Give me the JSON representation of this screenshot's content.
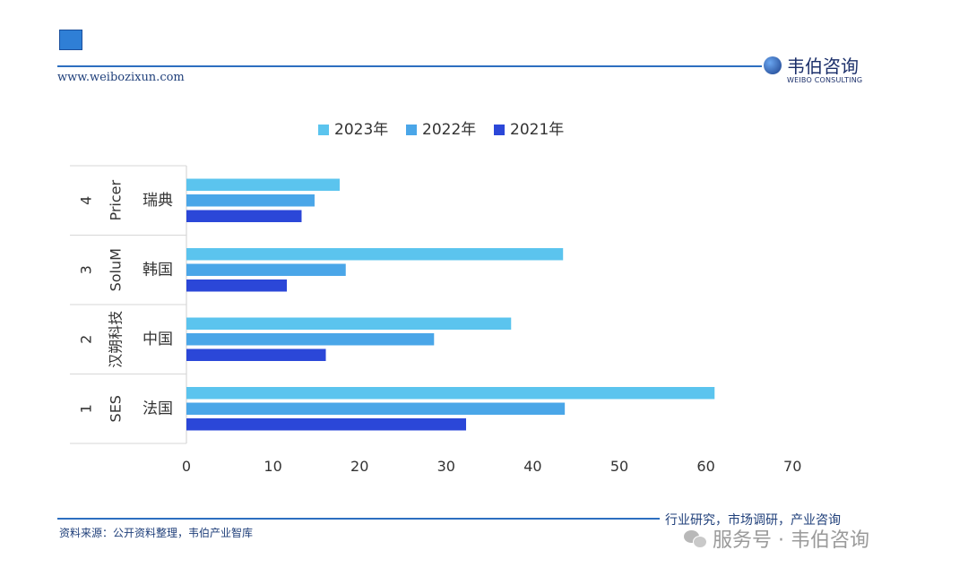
{
  "header": {
    "site_url": "www.weibozixun.com",
    "brand_name": "韦伯咨询",
    "brand_en": "WEIBO CONSULTING"
  },
  "footer": {
    "source": "资料来源：公开资料整理，韦伯产业智库",
    "tagline": "行业研究，市场调研，产业咨询",
    "watermark": "服务号 · 韦伯咨询"
  },
  "colors": {
    "accent": "#2d6fc0",
    "series_2023": "#5bc4ee",
    "series_2022": "#4aa6e8",
    "series_2021": "#2b47d8"
  },
  "chart_data": {
    "type": "bar",
    "orientation": "horizontal",
    "categories": [
      {
        "rank": "1",
        "company": "SES",
        "region": "法国"
      },
      {
        "rank": "2",
        "company": "汉朔科技",
        "region": "中国"
      },
      {
        "rank": "3",
        "company": "SoluM",
        "region": "韩国"
      },
      {
        "rank": "4",
        "company": "Pricer",
        "region": "瑞典"
      }
    ],
    "series": [
      {
        "name": "2023年",
        "values": [
          61,
          37.5,
          43.5,
          17.7
        ]
      },
      {
        "name": "2022年",
        "values": [
          43.7,
          28.6,
          18.4,
          14.8
        ]
      },
      {
        "name": "2021年",
        "values": [
          32.3,
          16.1,
          11.6,
          13.3
        ]
      }
    ],
    "xlim": [
      0,
      70
    ],
    "xticks": [
      "0",
      "10",
      "20",
      "30",
      "40",
      "50",
      "60",
      "70"
    ],
    "legend_position": "top",
    "grid": false
  }
}
